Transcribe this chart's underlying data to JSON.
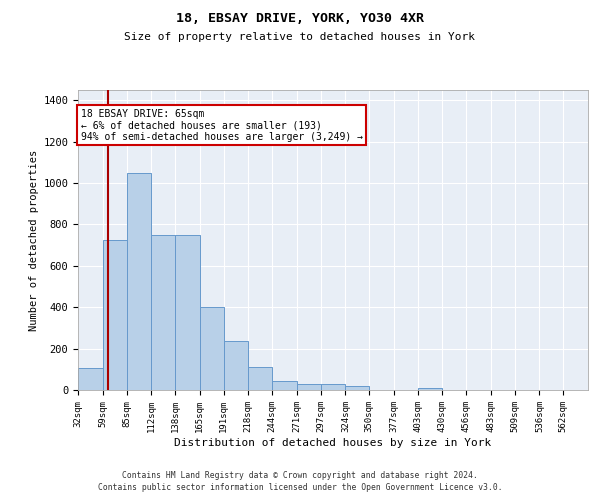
{
  "title1": "18, EBSAY DRIVE, YORK, YO30 4XR",
  "title2": "Size of property relative to detached houses in York",
  "xlabel": "Distribution of detached houses by size in York",
  "ylabel": "Number of detached properties",
  "footnote1": "Contains HM Land Registry data © Crown copyright and database right 2024.",
  "footnote2": "Contains public sector information licensed under the Open Government Licence v3.0.",
  "annotation_line1": "18 EBSAY DRIVE: 65sqm",
  "annotation_line2": "← 6% of detached houses are smaller (193)",
  "annotation_line3": "94% of semi-detached houses are larger (3,249) →",
  "property_size": 65,
  "bar_color": "#b8d0e8",
  "bar_edge_color": "#6699cc",
  "vline_color": "#aa0000",
  "annotation_box_color": "#cc0000",
  "bg_color": "#e8eef6",
  "ylim": [
    0,
    1450
  ],
  "yticks": [
    0,
    200,
    400,
    600,
    800,
    1000,
    1200,
    1400
  ],
  "bin_labels": [
    "32sqm",
    "59sqm",
    "85sqm",
    "112sqm",
    "138sqm",
    "165sqm",
    "191sqm",
    "218sqm",
    "244sqm",
    "271sqm",
    "297sqm",
    "324sqm",
    "350sqm",
    "377sqm",
    "403sqm",
    "430sqm",
    "456sqm",
    "483sqm",
    "509sqm",
    "536sqm",
    "562sqm"
  ],
  "bin_edges": [
    32,
    59,
    85,
    112,
    138,
    165,
    191,
    218,
    244,
    271,
    297,
    324,
    350,
    377,
    403,
    430,
    456,
    483,
    509,
    536,
    562,
    589
  ],
  "bar_heights": [
    105,
    725,
    1050,
    748,
    748,
    400,
    235,
    112,
    42,
    28,
    28,
    20,
    0,
    0,
    12,
    0,
    0,
    0,
    0,
    0,
    0
  ]
}
